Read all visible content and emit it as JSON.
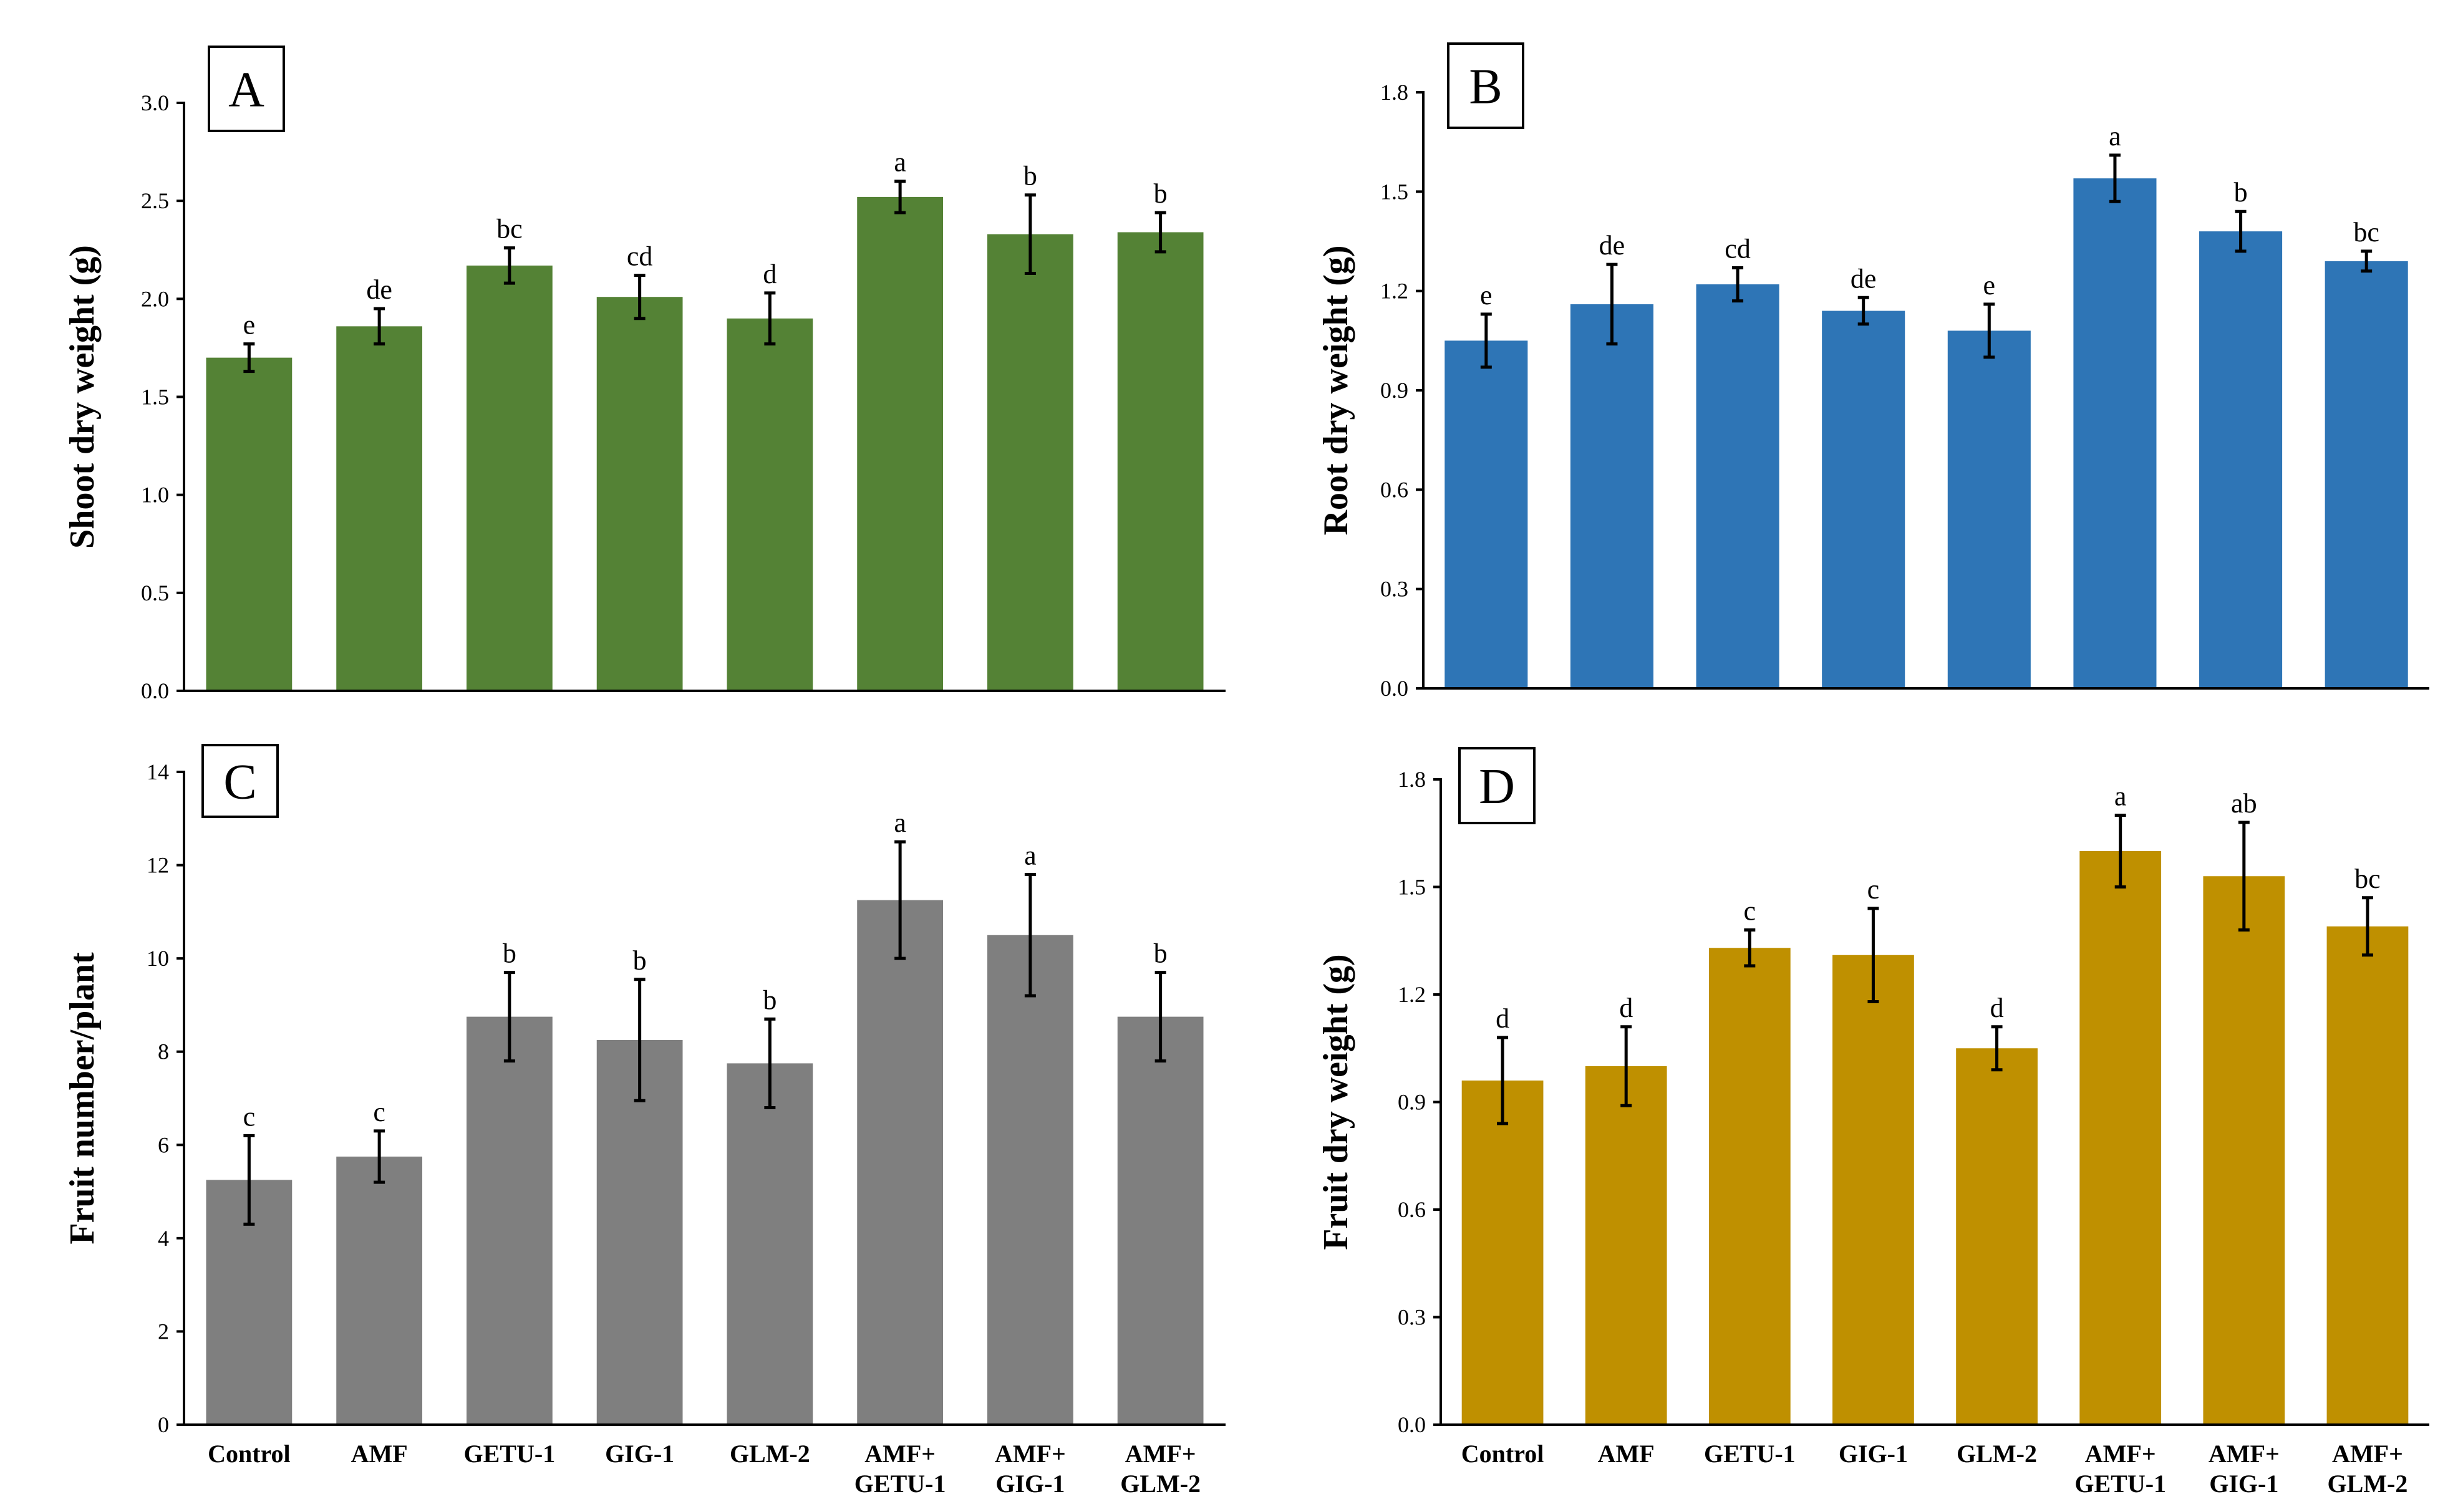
{
  "chart_data": [
    {
      "panel": "A",
      "type": "bar",
      "ylabel": "Shoot dry weight (g)",
      "ylim": [
        0,
        3.0
      ],
      "yticks": [
        "0.0",
        "0.5",
        "1.0",
        "1.5",
        "2.0",
        "2.5",
        "3.0"
      ],
      "categories": [
        "Control",
        "AMF",
        "GETU-1",
        "GIG-1",
        "GLM-2",
        "AMF+GETU-1",
        "AMF+GIG-1",
        "AMF+GLM-2"
      ],
      "values": [
        1.7,
        1.86,
        2.17,
        2.01,
        1.9,
        2.52,
        2.33,
        2.34
      ],
      "errors": [
        0.07,
        0.09,
        0.09,
        0.11,
        0.13,
        0.08,
        0.2,
        0.1
      ],
      "letters": [
        "e",
        "de",
        "bc",
        "cd",
        "d",
        "a",
        "b",
        "b"
      ],
      "color": "#548235"
    },
    {
      "panel": "B",
      "type": "bar",
      "ylabel": "Root dry weight (g)",
      "ylim": [
        0,
        1.8
      ],
      "yticks": [
        "0.0",
        "0.3",
        "0.6",
        "0.9",
        "1.2",
        "1.5",
        "1.8"
      ],
      "categories": [
        "Control",
        "AMF",
        "GETU-1",
        "GIG-1",
        "GLM-2",
        "AMF+GETU-1",
        "AMF+GIG-1",
        "AMF+GLM-2"
      ],
      "values": [
        1.05,
        1.16,
        1.22,
        1.14,
        1.08,
        1.54,
        1.38,
        1.29
      ],
      "errors": [
        0.08,
        0.12,
        0.05,
        0.04,
        0.08,
        0.07,
        0.06,
        0.03
      ],
      "letters": [
        "e",
        "de",
        "cd",
        "de",
        "e",
        "a",
        "b",
        "bc"
      ],
      "color": "#2E75B6"
    },
    {
      "panel": "C",
      "type": "bar",
      "ylabel": "Fruit number/plant",
      "ylim": [
        0,
        14
      ],
      "yticks": [
        "0",
        "2",
        "4",
        "6",
        "8",
        "10",
        "12",
        "14"
      ],
      "categories": [
        "Control",
        "AMF",
        "GETU-1",
        "GIG-1",
        "GLM-2",
        "AMF+GETU-1",
        "AMF+GIG-1",
        "AMF+GLM-2"
      ],
      "values": [
        5.25,
        5.75,
        8.75,
        8.25,
        7.75,
        11.25,
        10.5,
        8.75
      ],
      "errors": [
        0.95,
        0.55,
        0.95,
        1.3,
        0.95,
        1.25,
        1.3,
        0.95
      ],
      "letters": [
        "c",
        "c",
        "b",
        "b",
        "b",
        "a",
        "a",
        "b"
      ],
      "color": "#7F7F7F"
    },
    {
      "panel": "D",
      "type": "bar",
      "ylabel": "Fruit dry weight (g)",
      "ylim": [
        0,
        1.8
      ],
      "yticks": [
        "0.0",
        "0.3",
        "0.6",
        "0.9",
        "1.2",
        "1.5",
        "1.8"
      ],
      "categories": [
        "Control",
        "AMF",
        "GETU-1",
        "GIG-1",
        "GLM-2",
        "AMF+GETU-1",
        "AMF+GIG-1",
        "AMF+GLM-2"
      ],
      "values": [
        0.96,
        1.0,
        1.33,
        1.31,
        1.05,
        1.6,
        1.53,
        1.39
      ],
      "errors": [
        0.12,
        0.11,
        0.05,
        0.13,
        0.06,
        0.1,
        0.15,
        0.08
      ],
      "letters": [
        "d",
        "d",
        "c",
        "c",
        "d",
        "a",
        "ab",
        "bc"
      ],
      "color": "#BF9000"
    }
  ],
  "category_lines": [
    [
      "Control"
    ],
    [
      "AMF"
    ],
    [
      "GETU-1"
    ],
    [
      "GIG-1"
    ],
    [
      "GLM-2"
    ],
    [
      "AMF+",
      "GETU-1"
    ],
    [
      "AMF+",
      "GIG-1"
    ],
    [
      "AMF+",
      "GLM-2"
    ]
  ]
}
